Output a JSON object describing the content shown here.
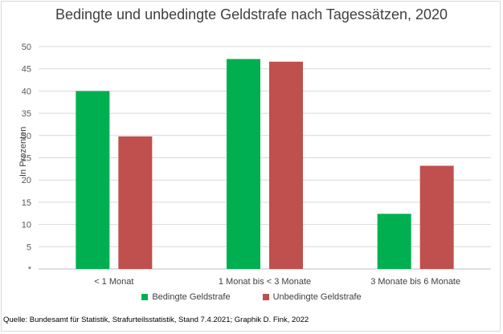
{
  "chart_data": {
    "type": "bar",
    "title": "Bedingte und unbedingte Geldstrafe nach Tagessätzen, 2020",
    "ylabel": "In Prozenten",
    "xlabel": "",
    "ylim": [
      0,
      50
    ],
    "yticks": [
      "*",
      "5",
      "10",
      "15",
      "20",
      "25",
      "30",
      "35",
      "40",
      "45",
      "50"
    ],
    "categories": [
      "< 1 Monat",
      "1 Monat bis < 3 Monate",
      "3 Monate bis 6 Monate"
    ],
    "series": [
      {
        "name": "Bedingte Geldstrafe",
        "color": "#00b050",
        "values": [
          40.0,
          47.2,
          12.4
        ]
      },
      {
        "name": "Unbedingte Geldstrafe",
        "color": "#c0504d",
        "values": [
          29.8,
          46.6,
          23.2
        ]
      }
    ],
    "grid": true,
    "legend_position": "bottom"
  },
  "source": "Quelle: Bundesamt für Statistik, Strafurteilsstatistik, Stand 7.4.2021; Graphik D. Fink, 2022"
}
